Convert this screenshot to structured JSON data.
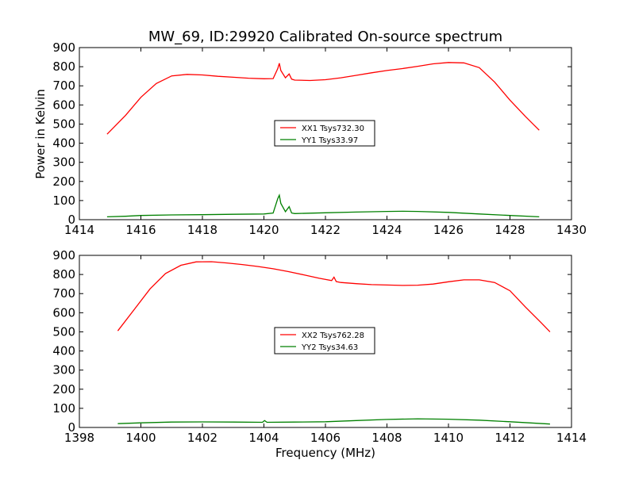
{
  "chart_data": [
    {
      "type": "line",
      "title": "MW_69, ID:29920 Calibrated On-source spectrum",
      "xlabel": "",
      "ylabel": "Power in Kelvin",
      "xlim": [
        1414,
        1430
      ],
      "ylim": [
        0,
        900
      ],
      "xticks": [
        1414,
        1416,
        1418,
        1420,
        1422,
        1424,
        1426,
        1428,
        1430
      ],
      "yticks": [
        0,
        100,
        200,
        300,
        400,
        500,
        600,
        700,
        800,
        900
      ],
      "legend_position": "center",
      "series": [
        {
          "name": "XX1 Tsys732.30",
          "color": "#ff0000",
          "x": [
            1414.9,
            1415.5,
            1416.0,
            1416.5,
            1417.0,
            1417.5,
            1418.0,
            1418.5,
            1419.0,
            1419.5,
            1420.0,
            1420.3,
            1420.45,
            1420.5,
            1420.55,
            1420.7,
            1420.82,
            1420.9,
            1421.0,
            1421.5,
            1422.0,
            1422.5,
            1423.0,
            1423.5,
            1424.0,
            1424.5,
            1425.0,
            1425.5,
            1426.0,
            1426.5,
            1427.0,
            1427.5,
            1428.0,
            1428.5,
            1428.95
          ],
          "y": [
            447,
            545,
            640,
            712,
            752,
            760,
            757,
            750,
            745,
            740,
            737,
            738,
            790,
            818,
            780,
            742,
            762,
            735,
            730,
            728,
            732,
            742,
            755,
            768,
            780,
            790,
            802,
            815,
            822,
            820,
            795,
            720,
            625,
            540,
            468
          ]
        },
        {
          "name": "YY1 Tsys33.97",
          "color": "#008000",
          "x": [
            1414.9,
            1415.5,
            1416.0,
            1417.0,
            1418.0,
            1419.0,
            1420.0,
            1420.3,
            1420.45,
            1420.5,
            1420.55,
            1420.7,
            1420.82,
            1420.9,
            1421.0,
            1422.0,
            1423.0,
            1424.0,
            1424.5,
            1425.0,
            1426.0,
            1427.0,
            1428.0,
            1428.95
          ],
          "y": [
            15,
            18,
            22,
            25,
            26,
            28,
            30,
            35,
            110,
            128,
            85,
            42,
            68,
            35,
            32,
            36,
            40,
            43,
            44,
            43,
            38,
            30,
            22,
            15
          ]
        }
      ]
    },
    {
      "type": "line",
      "title": "",
      "xlabel": "Frequency (MHz)",
      "ylabel": "",
      "xlim": [
        1398,
        1414
      ],
      "ylim": [
        0,
        900
      ],
      "xticks": [
        1398,
        1400,
        1402,
        1404,
        1406,
        1408,
        1410,
        1412,
        1414
      ],
      "yticks": [
        0,
        100,
        200,
        300,
        400,
        500,
        600,
        700,
        800,
        900
      ],
      "legend_position": "center",
      "series": [
        {
          "name": "XX2 Tsys762.28",
          "color": "#ff0000",
          "x": [
            1399.25,
            1399.8,
            1400.3,
            1400.8,
            1401.3,
            1401.8,
            1402.3,
            1402.8,
            1403.3,
            1403.8,
            1404.3,
            1404.8,
            1405.3,
            1405.8,
            1406.2,
            1406.28,
            1406.35,
            1406.5,
            1407.0,
            1407.5,
            1408.0,
            1408.5,
            1409.0,
            1409.5,
            1410.0,
            1410.5,
            1411.0,
            1411.5,
            1412.0,
            1412.5,
            1413.0,
            1413.3
          ],
          "y": [
            505,
            620,
            725,
            805,
            848,
            866,
            867,
            860,
            852,
            842,
            830,
            815,
            798,
            780,
            768,
            786,
            763,
            758,
            752,
            747,
            745,
            743,
            744,
            750,
            762,
            772,
            772,
            758,
            715,
            630,
            550,
            500
          ]
        },
        {
          "name": "YY2 Tsys34.63",
          "color": "#008000",
          "x": [
            1399.25,
            1400.0,
            1401.0,
            1402.0,
            1403.0,
            1403.95,
            1404.02,
            1404.1,
            1405.0,
            1406.0,
            1407.0,
            1408.0,
            1409.0,
            1410.0,
            1411.0,
            1412.0,
            1413.3
          ],
          "y": [
            20,
            24,
            28,
            29,
            28,
            27,
            36,
            27,
            28,
            30,
            36,
            42,
            45,
            43,
            38,
            30,
            18
          ]
        }
      ]
    }
  ]
}
